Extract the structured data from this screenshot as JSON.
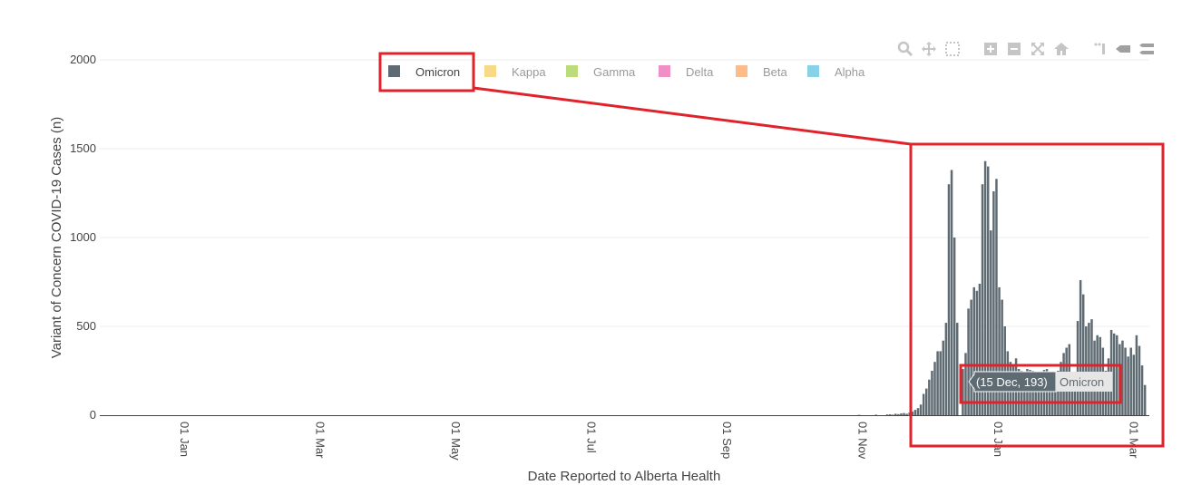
{
  "chart_data": {
    "type": "bar",
    "xlabel": "Date Reported to Alberta Health",
    "ylabel": "Variant of Concern COVID-19 Cases (n)",
    "ylim": [
      0,
      2000
    ],
    "yticks": [
      0,
      500,
      1000,
      1500,
      2000
    ],
    "xticks": [
      "01 Jan",
      "01 Mar",
      "01 May",
      "01 Jul",
      "01 Sep",
      "01 Nov",
      "01 Jan",
      "01 Mar"
    ],
    "grid": true,
    "legend_position": "top",
    "legend": [
      {
        "name": "Omicron",
        "color": "#5f6b73",
        "active": true
      },
      {
        "name": "Kappa",
        "color": "#f7d57a",
        "active": false
      },
      {
        "name": "Gamma",
        "color": "#b5d76c",
        "active": false
      },
      {
        "name": "Delta",
        "color": "#ee83c0",
        "active": false
      },
      {
        "name": "Beta",
        "color": "#fdb57c",
        "active": false
      },
      {
        "name": "Alpha",
        "color": "#7bcde4",
        "active": false
      }
    ],
    "series": [
      {
        "name": "Omicron",
        "color": "#5f6b73",
        "values": [
          0,
          0,
          0,
          0,
          0,
          0,
          0,
          0,
          0,
          0,
          2,
          0,
          0,
          0,
          0,
          0,
          3,
          0,
          0,
          0,
          4,
          5,
          3,
          8,
          6,
          10,
          12,
          8,
          15,
          20,
          30,
          40,
          60,
          120,
          150,
          200,
          250,
          300,
          360,
          360,
          420,
          520,
          1300,
          1380,
          1000,
          520,
          0,
          260,
          350,
          600,
          650,
          720,
          700,
          740,
          1300,
          1430,
          1400,
          1040,
          1260,
          1330,
          720,
          650,
          500,
          360,
          300,
          280,
          320,
          260,
          250,
          240,
          260,
          255,
          250,
          230,
          245,
          240,
          255,
          260,
          230,
          240,
          220,
          250,
          300,
          350,
          380,
          400,
          240,
          230,
          530,
          760,
          680,
          500,
          520,
          540,
          420,
          450,
          440,
          380,
          250,
          320,
          480,
          460,
          450,
          400,
          420,
          380,
          330,
          380,
          340,
          450,
          390,
          280,
          170
        ],
        "highlight": {
          "label": "(15 Dec, 193)",
          "series_label": "Omicron"
        }
      }
    ],
    "tooltip": {
      "date": "15 Dec",
      "value": 193,
      "text": "(15 Dec, 193)",
      "series": "Omicron"
    }
  },
  "modebar": {
    "icons": [
      "zoom-icon",
      "pan-icon",
      "box-select-icon",
      "zoom-in-icon",
      "zoom-out-icon",
      "autoscale-icon",
      "reset-axes-icon",
      "spike-lines-icon",
      "hover-closest-icon",
      "hover-compare-icon"
    ]
  },
  "annotation_color": "#e0232b"
}
